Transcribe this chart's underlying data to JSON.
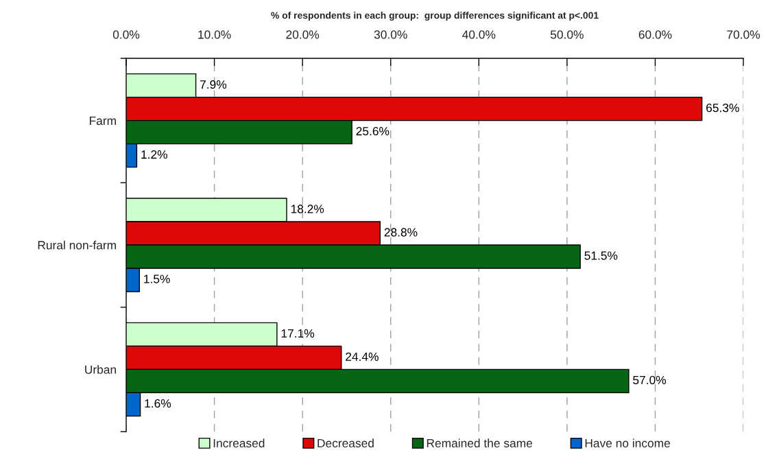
{
  "chart_data": {
    "type": "bar",
    "orientation": "horizontal",
    "xlabel": "% of respondents in each group:  group differences significant at p<.001",
    "categories": [
      "Farm",
      "Rural non-farm",
      "Urban"
    ],
    "series": [
      {
        "name": "Increased",
        "color": "#ccffcc",
        "values": [
          7.9,
          18.2,
          17.1
        ],
        "value_labels": [
          "7.9%",
          "18.2%",
          "17.1%"
        ]
      },
      {
        "name": "Decreased",
        "color": "#dd0808",
        "values": [
          65.3,
          28.8,
          24.4
        ],
        "value_labels": [
          "65.3%",
          "28.8%",
          "24.4%"
        ]
      },
      {
        "name": "Remained the same",
        "color": "#066616",
        "values": [
          25.6,
          51.5,
          57.0
        ],
        "value_labels": [
          "25.6%",
          "51.5%",
          "57.0%"
        ]
      },
      {
        "name": "Have no income",
        "color": "#0066cc",
        "values": [
          1.2,
          1.5,
          1.6
        ],
        "value_labels": [
          "1.2%",
          "1.5%",
          "1.6%"
        ]
      }
    ],
    "xlim": [
      0,
      70
    ],
    "xticks": [
      {
        "value": 0,
        "label": "0.0%"
      },
      {
        "value": 10,
        "label": "10.0%"
      },
      {
        "value": 20,
        "label": "20.0%"
      },
      {
        "value": 30,
        "label": "30.0%"
      },
      {
        "value": 40,
        "label": "40.0%"
      },
      {
        "value": 50,
        "label": "50.0%"
      },
      {
        "value": 60,
        "label": "60.0%"
      },
      {
        "value": 70,
        "label": "70.0%"
      }
    ],
    "grid": "x",
    "legend": "bottom"
  }
}
